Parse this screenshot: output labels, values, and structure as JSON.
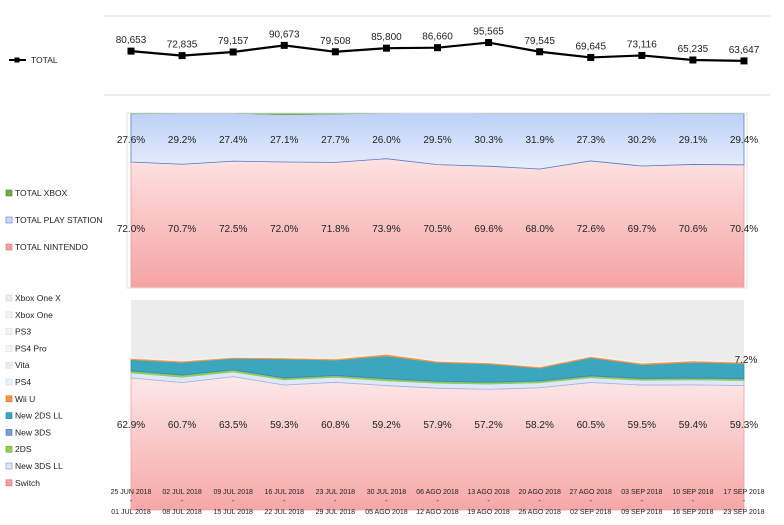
{
  "chart_data": [
    {
      "type": "line",
      "title": "",
      "legend": "TOTAL",
      "legend_position": "left",
      "categories": [
        "25 JUN 2018 - 01 JUL 2018",
        "02 JUL 2018 - 08 JUL 2018",
        "09 JUL 2018 - 15 JUL 2018",
        "16 JUL 2018 - 22 JUL 2018",
        "23 JUL 2018 - 29 JUL 2018",
        "30 JUL 2018 - 05 AGO 2018",
        "06 AGO 2018 - 12 AGO 2018",
        "13 AGO 2018 - 19 AGO 2018",
        "20 AGO 2018 - 26 AGO 2018",
        "27 AGO 2018 - 02 SEP 2018",
        "03 SEP 2018 - 09 SEP 2018",
        "10 SEP 2018 - 16 SEP 2018",
        "17 SEP 2018 - 23 SEP 2018"
      ],
      "values": [
        80653,
        72835,
        79157,
        90673,
        79508,
        85800,
        86660,
        95565,
        79545,
        69645,
        73116,
        65235,
        63647
      ],
      "labels": [
        "80,653",
        "72,835",
        "79,157",
        "90,673",
        "79,508",
        "85,800",
        "86,660",
        "95,565",
        "79,545",
        "69,645",
        "73,116",
        "65,235",
        "63,647"
      ],
      "ylim": [
        0,
        200000
      ],
      "grid": true
    },
    {
      "type": "area",
      "stacked": "percent",
      "legend_position": "left",
      "series": [
        {
          "name": "TOTAL NINTENDO",
          "values": [
            72.0,
            70.7,
            72.5,
            72.0,
            71.8,
            73.9,
            70.5,
            69.6,
            68.0,
            72.6,
            69.7,
            70.6,
            70.4
          ],
          "labels": [
            "72.0%",
            "70.7%",
            "72.5%",
            "72.0%",
            "71.8%",
            "73.9%",
            "70.5%",
            "69.6%",
            "68.0%",
            "72.6%",
            "69.7%",
            "70.6%",
            "70.4%"
          ]
        },
        {
          "name": "TOTAL PLAY STATION",
          "values": [
            27.6,
            29.2,
            27.4,
            27.1,
            27.7,
            26.0,
            29.5,
            30.3,
            31.9,
            27.3,
            30.2,
            29.1,
            29.4
          ],
          "labels": [
            "27.6%",
            "29.2%",
            "27.4%",
            "27.1%",
            "27.7%",
            "26.0%",
            "29.5%",
            "30.3%",
            "31.9%",
            "27.3%",
            "30.2%",
            "29.1%",
            "29.4%"
          ]
        },
        {
          "name": "TOTAL XBOX",
          "values": [
            0.4,
            0.1,
            0.1,
            0.9,
            0.5,
            0.1,
            0.0,
            0.1,
            0.1,
            0.1,
            0.1,
            0.3,
            0.2
          ]
        }
      ]
    },
    {
      "type": "area",
      "stacked": "percent",
      "legend_position": "left",
      "series": [
        {
          "name": "Switch",
          "values": [
            62.9,
            60.7,
            63.5,
            59.3,
            60.8,
            59.2,
            57.9,
            57.2,
            58.2,
            60.5,
            59.5,
            59.4,
            59.3
          ],
          "labels": [
            "62.9%",
            "60.7%",
            "63.5%",
            "59.3%",
            "60.8%",
            "59.2%",
            "57.9%",
            "57.2%",
            "58.2%",
            "60.5%",
            "59.5%",
            "59.4%",
            "59.3%"
          ]
        },
        {
          "name": "New 3DS LL",
          "values": [
            2.4,
            2.6,
            2.3,
            2.5,
            2.4,
            2.3,
            2.4,
            2.5,
            2.4,
            2.3,
            2.3,
            2.4,
            2.4
          ]
        },
        {
          "name": "2DS",
          "values": [
            0.8,
            0.8,
            0.8,
            0.7,
            0.7,
            0.8,
            0.7,
            0.7,
            0.7,
            0.7,
            0.7,
            0.7,
            0.7
          ]
        },
        {
          "name": "New 3DS",
          "values": [
            0.2,
            0.2,
            0.2,
            0.2,
            0.2,
            0.2,
            0.2,
            0.2,
            0.2,
            0.2,
            0.2,
            0.2,
            0.2
          ]
        },
        {
          "name": "New 2DS LL",
          "values": [
            5.3,
            6.0,
            5.4,
            8.9,
            7.3,
            10.8,
            8.9,
            8.6,
            6.1,
            8.5,
            6.5,
            7.4,
            7.2
          ],
          "labels": [
            "",
            "",
            "",
            "",
            "",
            "",
            "",
            "",
            "",
            "",
            "",
            "",
            "7.2%"
          ]
        },
        {
          "name": "Wii U",
          "values": [
            0.4,
            0.4,
            0.3,
            0.4,
            0.4,
            0.6,
            0.4,
            0.4,
            0.4,
            0.4,
            0.5,
            0.5,
            0.4
          ]
        },
        {
          "name": "PS4",
          "values": [
            0.2,
            0.2,
            0.2,
            0.2,
            0.2,
            0.2,
            0.2,
            0.2,
            0.2,
            0.2,
            0.2,
            0.2,
            0.2
          ]
        },
        {
          "name": "Vita",
          "values": [
            0.1,
            0.1,
            0.1,
            0.1,
            0.1,
            0.1,
            0.1,
            0.1,
            0.1,
            0.1,
            0.1,
            0.1,
            0.1
          ]
        },
        {
          "name": "PS4 Pro",
          "values": [
            0.1,
            0.1,
            0.1,
            0.1,
            0.1,
            0.1,
            0.1,
            0.1,
            0.1,
            0.1,
            0.1,
            0.1,
            0.1
          ]
        },
        {
          "name": "PS3",
          "values": [
            0.1,
            0.1,
            0.1,
            0.1,
            0.1,
            0.1,
            0.1,
            0.1,
            0.1,
            0.1,
            0.1,
            0.1,
            0.1
          ]
        },
        {
          "name": "Xbox One",
          "values": [
            0.1,
            0.1,
            0.1,
            0.1,
            0.1,
            0.1,
            0.1,
            0.1,
            0.1,
            0.1,
            0.1,
            0.1,
            0.1
          ]
        },
        {
          "name": "Xbox One X",
          "values": [
            27.4,
            28.7,
            26.9,
            27.0,
            27.6,
            25.4,
            28.7,
            29.3,
            31.4,
            26.4,
            29.7,
            28.5,
            29.2
          ]
        }
      ]
    }
  ],
  "colors": {
    "total_line": "#000000",
    "xbox": "#70ad47",
    "playstation": "#c9d9f8",
    "playstation_edge": "#5b7ccf",
    "nintendo_top": "#fdd0d0",
    "nintendo_bottom": "#f5a0a0",
    "switch": "#f8bfbf",
    "new3dsll": "#dfe8fb",
    "twods": "#92d050",
    "new3ds": "#7f9bd8",
    "new2dsll": "#3aa7bf",
    "wiiu": "#f79646",
    "ps4": "#eaf1fb",
    "vita": "#eeeeee",
    "ps4pro": "#f6f6f6",
    "ps3": "#f2f2f2",
    "xboxone": "#f4f4f4",
    "xboxonex": "#ececec",
    "grid": "#d9d9d9"
  },
  "legend_icons": {
    "total": "line-marker-icon",
    "swatch": "square-swatch-icon"
  }
}
